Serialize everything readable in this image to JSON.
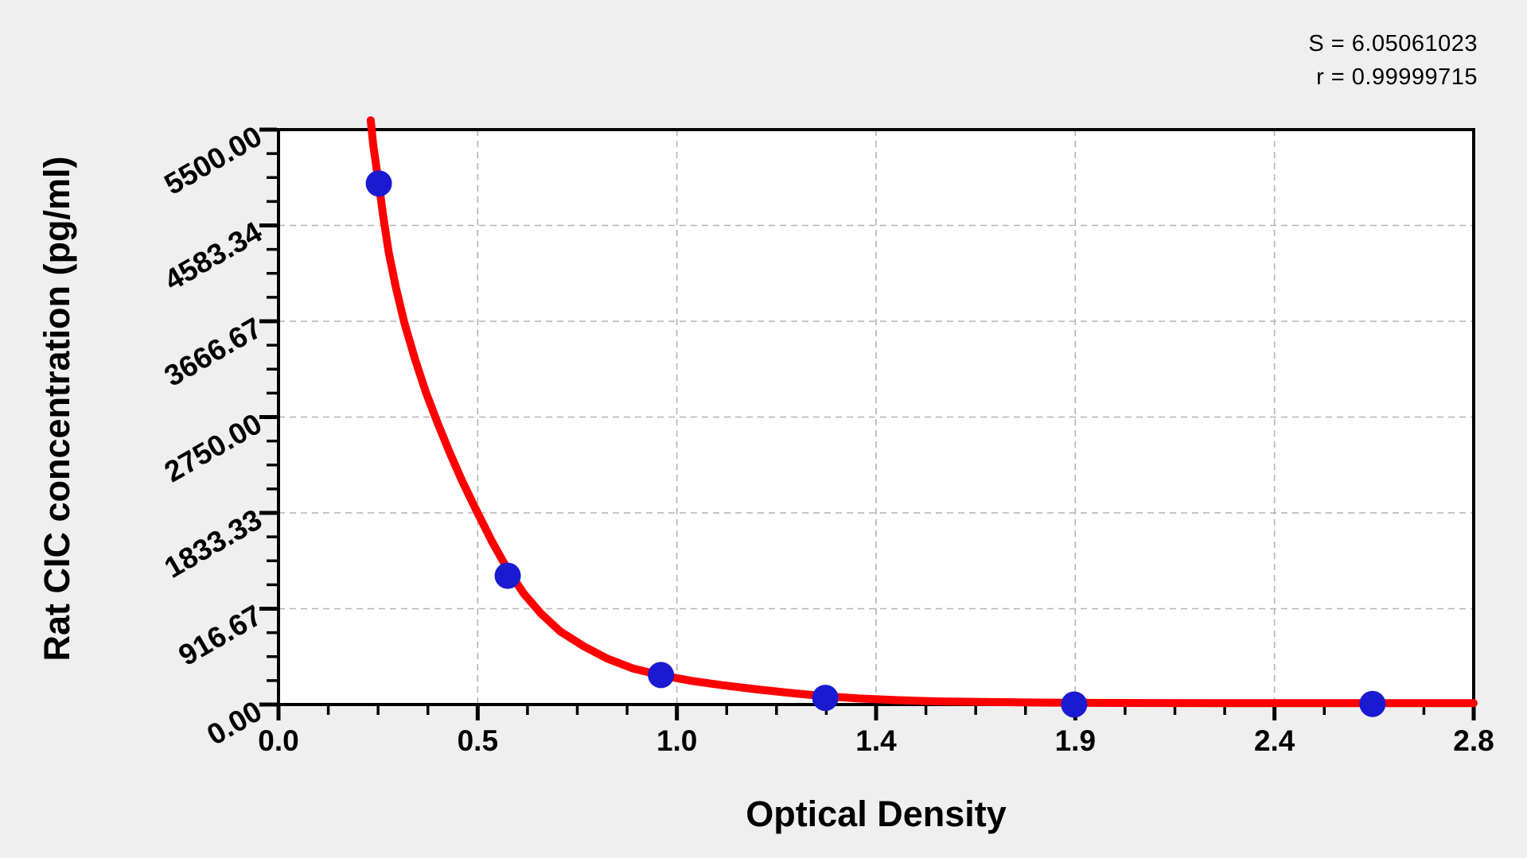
{
  "annotations": {
    "s_line": "S = 6.05061023",
    "r_line": "r = 0.99999715"
  },
  "chart_data": {
    "type": "scatter",
    "title": "",
    "xlabel": "Optical Density",
    "ylabel": "Rat CIC concentration (pg/ml)",
    "xlim": [
      0,
      2.8
    ],
    "ylim": [
      0,
      5500
    ],
    "x_tick_labels": [
      "0.0",
      "0.5",
      "1.0",
      "1.4",
      "1.9",
      "2.4",
      "2.8"
    ],
    "y_tick_labels": [
      "0.00",
      "916.67",
      "1833.33",
      "2750.00",
      "3666.67",
      "4583.34",
      "5500.00"
    ],
    "minor_ticks_per_interval": 3,
    "grid": "dashed gray lines at major ticks, plot area framed",
    "legend": "none",
    "stats": {
      "S": 6.05061023,
      "r": 0.99999715
    },
    "points": [
      {
        "od": 0.235,
        "conc": 4985
      },
      {
        "od": 0.537,
        "conc": 1232
      },
      {
        "od": 0.896,
        "conc": 282
      },
      {
        "od": 1.281,
        "conc": 64
      },
      {
        "od": 1.864,
        "conc": 0
      },
      {
        "od": 2.563,
        "conc": 6
      }
    ],
    "fit_curve_samples": [
      [
        0.216,
        5590
      ],
      [
        0.222,
        5350
      ],
      [
        0.23,
        5120
      ],
      [
        0.235,
        4985
      ],
      [
        0.245,
        4680
      ],
      [
        0.258,
        4330
      ],
      [
        0.275,
        3990
      ],
      [
        0.295,
        3650
      ],
      [
        0.32,
        3300
      ],
      [
        0.345,
        2990
      ],
      [
        0.372,
        2700
      ],
      [
        0.4,
        2420
      ],
      [
        0.43,
        2140
      ],
      [
        0.462,
        1870
      ],
      [
        0.5,
        1560
      ],
      [
        0.537,
        1290
      ],
      [
        0.575,
        1060
      ],
      [
        0.615,
        870
      ],
      [
        0.66,
        700
      ],
      [
        0.716,
        555
      ],
      [
        0.77,
        440
      ],
      [
        0.83,
        345
      ],
      [
        0.896,
        280
      ],
      [
        0.97,
        225
      ],
      [
        1.04,
        185
      ],
      [
        1.12,
        145
      ],
      [
        1.2,
        110
      ],
      [
        1.28,
        80
      ],
      [
        1.36,
        58
      ],
      [
        1.45,
        42
      ],
      [
        1.55,
        30
      ],
      [
        1.65,
        24
      ],
      [
        1.8,
        18
      ],
      [
        1.95,
        15
      ],
      [
        2.2,
        14
      ],
      [
        2.5,
        14
      ],
      [
        2.8,
        14
      ]
    ],
    "colors": {
      "curve": "#ff0000",
      "points": "#1a1ad1",
      "grid": "#b3b3b3",
      "axis": "#000000",
      "background": "#efefef",
      "plot_background": "#ffffff",
      "text": "#000000"
    }
  }
}
